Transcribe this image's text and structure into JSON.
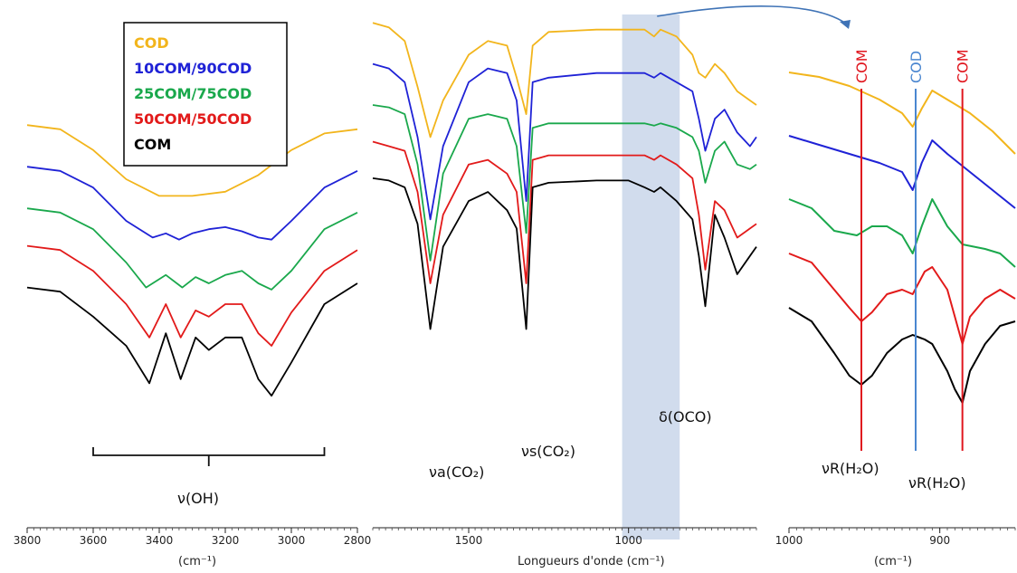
{
  "colors": {
    "COD": "#f2b51c",
    "10COM/90COD": "#1f22d6",
    "25COM/75COD": "#1aa84c",
    "50COM/50COD": "#e21a1a",
    "COM": "#000000",
    "band": "#c9d6ea",
    "arrow": "#3f73b6",
    "cod_line": "#4a86d0",
    "com_line": "#e0161e"
  },
  "legend": [
    "COD",
    "10COM/90COD",
    "25COM/75COD",
    "50COM/50COD",
    "COM"
  ],
  "chart_data": [
    {
      "type": "line",
      "panel": "left",
      "xlim": [
        3800,
        2800
      ],
      "xticks": [
        "3800",
        "3600",
        "3400",
        "3200",
        "3000",
        "2800"
      ],
      "xlabel": "(cm⁻¹)",
      "bracket_label": "ν(OH)",
      "bracket_range": [
        3600,
        2900
      ],
      "series": [
        {
          "name": "COD",
          "x": [
            3800,
            3700,
            3600,
            3500,
            3400,
            3350,
            3300,
            3200,
            3100,
            3000,
            2900,
            2800
          ],
          "y": [
            0.83,
            0.82,
            0.77,
            0.7,
            0.66,
            0.66,
            0.66,
            0.67,
            0.71,
            0.77,
            0.81,
            0.82
          ]
        },
        {
          "name": "10COM/90COD",
          "x": [
            3800,
            3700,
            3600,
            3500,
            3420,
            3380,
            3340,
            3300,
            3250,
            3200,
            3150,
            3100,
            3060,
            3000,
            2900,
            2800
          ],
          "y": [
            0.73,
            0.72,
            0.68,
            0.6,
            0.56,
            0.57,
            0.555,
            0.57,
            0.58,
            0.585,
            0.575,
            0.56,
            0.555,
            0.6,
            0.68,
            0.72
          ]
        },
        {
          "name": "25COM/75COD",
          "x": [
            3800,
            3700,
            3600,
            3500,
            3440,
            3380,
            3330,
            3290,
            3250,
            3200,
            3150,
            3100,
            3060,
            3000,
            2900,
            2800
          ],
          "y": [
            0.63,
            0.62,
            0.58,
            0.5,
            0.44,
            0.47,
            0.44,
            0.465,
            0.45,
            0.47,
            0.48,
            0.45,
            0.435,
            0.48,
            0.58,
            0.62
          ]
        },
        {
          "name": "50COM/50COD",
          "x": [
            3800,
            3700,
            3600,
            3500,
            3430,
            3380,
            3335,
            3290,
            3250,
            3200,
            3150,
            3100,
            3060,
            3000,
            2900,
            2800
          ],
          "y": [
            0.54,
            0.53,
            0.48,
            0.4,
            0.32,
            0.4,
            0.32,
            0.385,
            0.37,
            0.4,
            0.4,
            0.33,
            0.3,
            0.38,
            0.48,
            0.53
          ]
        },
        {
          "name": "COM",
          "x": [
            3800,
            3700,
            3600,
            3500,
            3430,
            3380,
            3335,
            3290,
            3250,
            3200,
            3150,
            3100,
            3060,
            3000,
            2900,
            2800
          ],
          "y": [
            0.44,
            0.43,
            0.37,
            0.3,
            0.21,
            0.33,
            0.22,
            0.32,
            0.29,
            0.32,
            0.32,
            0.22,
            0.18,
            0.26,
            0.4,
            0.45
          ]
        }
      ]
    },
    {
      "type": "line",
      "panel": "middle",
      "xlim": [
        1800,
        600
      ],
      "xticks": [
        "1500",
        "1000"
      ],
      "xlabel": "Longueurs d'onde (cm⁻¹)",
      "highlight_range": [
        1020,
        840
      ],
      "annotations": [
        "νa(CO₂)",
        "νs(CO₂)",
        "δ(OCO)"
      ],
      "series": [
        {
          "name": "COD",
          "x": [
            1800,
            1750,
            1700,
            1660,
            1620,
            1580,
            1500,
            1440,
            1380,
            1350,
            1320,
            1300,
            1250,
            1100,
            1000,
            950,
            920,
            900,
            850,
            800,
            780,
            760,
            730,
            700,
            660,
            620,
            600
          ],
          "y": [
            0.97,
            0.96,
            0.93,
            0.83,
            0.72,
            0.8,
            0.9,
            0.93,
            0.92,
            0.85,
            0.77,
            0.92,
            0.95,
            0.955,
            0.955,
            0.955,
            0.94,
            0.955,
            0.94,
            0.9,
            0.86,
            0.85,
            0.88,
            0.86,
            0.82,
            0.8,
            0.79
          ]
        },
        {
          "name": "10COM/90COD",
          "x": [
            1800,
            1750,
            1700,
            1660,
            1620,
            1580,
            1500,
            1440,
            1380,
            1350,
            1320,
            1300,
            1250,
            1100,
            1000,
            950,
            920,
            900,
            850,
            800,
            780,
            760,
            730,
            700,
            660,
            620,
            600
          ],
          "y": [
            0.88,
            0.87,
            0.84,
            0.72,
            0.54,
            0.7,
            0.84,
            0.87,
            0.86,
            0.8,
            0.58,
            0.84,
            0.85,
            0.86,
            0.86,
            0.86,
            0.85,
            0.86,
            0.84,
            0.82,
            0.76,
            0.69,
            0.76,
            0.78,
            0.73,
            0.7,
            0.72
          ]
        },
        {
          "name": "25COM/75COD",
          "x": [
            1800,
            1750,
            1700,
            1660,
            1620,
            1580,
            1500,
            1440,
            1380,
            1350,
            1320,
            1300,
            1250,
            1100,
            1000,
            950,
            920,
            900,
            850,
            800,
            780,
            760,
            730,
            700,
            660,
            620,
            600
          ],
          "y": [
            0.79,
            0.785,
            0.77,
            0.66,
            0.45,
            0.64,
            0.76,
            0.77,
            0.76,
            0.7,
            0.51,
            0.74,
            0.75,
            0.75,
            0.75,
            0.75,
            0.745,
            0.75,
            0.74,
            0.72,
            0.69,
            0.62,
            0.69,
            0.71,
            0.66,
            0.65,
            0.66
          ]
        },
        {
          "name": "50COM/50COD",
          "x": [
            1800,
            1750,
            1700,
            1660,
            1620,
            1580,
            1500,
            1440,
            1380,
            1350,
            1320,
            1300,
            1250,
            1100,
            1000,
            950,
            920,
            900,
            850,
            800,
            780,
            760,
            730,
            700,
            660,
            620,
            600
          ],
          "y": [
            0.71,
            0.7,
            0.69,
            0.6,
            0.4,
            0.55,
            0.66,
            0.67,
            0.64,
            0.6,
            0.4,
            0.67,
            0.68,
            0.68,
            0.68,
            0.68,
            0.67,
            0.68,
            0.66,
            0.63,
            0.55,
            0.43,
            0.58,
            0.56,
            0.5,
            0.52,
            0.53
          ]
        },
        {
          "name": "COM",
          "x": [
            1800,
            1750,
            1700,
            1660,
            1620,
            1580,
            1500,
            1440,
            1380,
            1350,
            1320,
            1300,
            1250,
            1100,
            1000,
            950,
            920,
            900,
            850,
            800,
            780,
            760,
            730,
            700,
            660,
            620,
            600
          ],
          "y": [
            0.63,
            0.625,
            0.61,
            0.53,
            0.3,
            0.48,
            0.58,
            0.6,
            0.56,
            0.52,
            0.3,
            0.61,
            0.62,
            0.625,
            0.625,
            0.61,
            0.6,
            0.61,
            0.58,
            0.54,
            0.46,
            0.35,
            0.55,
            0.5,
            0.42,
            0.46,
            0.48
          ]
        }
      ]
    },
    {
      "type": "line",
      "panel": "right",
      "xlim": [
        1000,
        850
      ],
      "xticks": [
        "1000",
        "900"
      ],
      "xlabel": "(cm⁻¹)",
      "vlines": [
        {
          "x": 952,
          "label": "COM",
          "color": "com_line"
        },
        {
          "x": 916,
          "label": "COD",
          "color": "cod_line"
        },
        {
          "x": 885,
          "label": "COM",
          "color": "com_line"
        }
      ],
      "annotations": [
        "νR(H₂O)",
        "νR(H₂O)"
      ],
      "series": [
        {
          "name": "COD",
          "x": [
            1000,
            980,
            960,
            940,
            925,
            918,
            912,
            905,
            895,
            880,
            865,
            850
          ],
          "y": [
            0.92,
            0.91,
            0.89,
            0.86,
            0.83,
            0.8,
            0.84,
            0.88,
            0.86,
            0.83,
            0.79,
            0.74
          ]
        },
        {
          "name": "10COM/90COD",
          "x": [
            1000,
            980,
            960,
            940,
            925,
            918,
            912,
            905,
            895,
            880,
            865,
            850
          ],
          "y": [
            0.78,
            0.76,
            0.74,
            0.72,
            0.7,
            0.66,
            0.72,
            0.77,
            0.74,
            0.7,
            0.66,
            0.62
          ]
        },
        {
          "name": "25COM/75COD",
          "x": [
            1000,
            985,
            970,
            955,
            945,
            935,
            925,
            918,
            912,
            905,
            895,
            885,
            870,
            860,
            850
          ],
          "y": [
            0.64,
            0.62,
            0.57,
            0.56,
            0.58,
            0.58,
            0.56,
            0.52,
            0.58,
            0.64,
            0.58,
            0.54,
            0.53,
            0.52,
            0.49
          ]
        },
        {
          "name": "50COM/50COD",
          "x": [
            1000,
            985,
            970,
            960,
            952,
            945,
            935,
            925,
            918,
            910,
            905,
            895,
            885,
            880,
            870,
            860,
            850
          ],
          "y": [
            0.52,
            0.5,
            0.44,
            0.4,
            0.37,
            0.39,
            0.43,
            0.44,
            0.43,
            0.48,
            0.49,
            0.44,
            0.32,
            0.38,
            0.42,
            0.44,
            0.42
          ]
        },
        {
          "name": "COM",
          "x": [
            1000,
            985,
            970,
            960,
            952,
            945,
            935,
            925,
            918,
            910,
            905,
            895,
            890,
            885,
            880,
            870,
            860,
            850
          ],
          "y": [
            0.4,
            0.37,
            0.3,
            0.25,
            0.23,
            0.25,
            0.3,
            0.33,
            0.34,
            0.33,
            0.32,
            0.26,
            0.22,
            0.19,
            0.26,
            0.32,
            0.36,
            0.37
          ]
        }
      ]
    }
  ]
}
